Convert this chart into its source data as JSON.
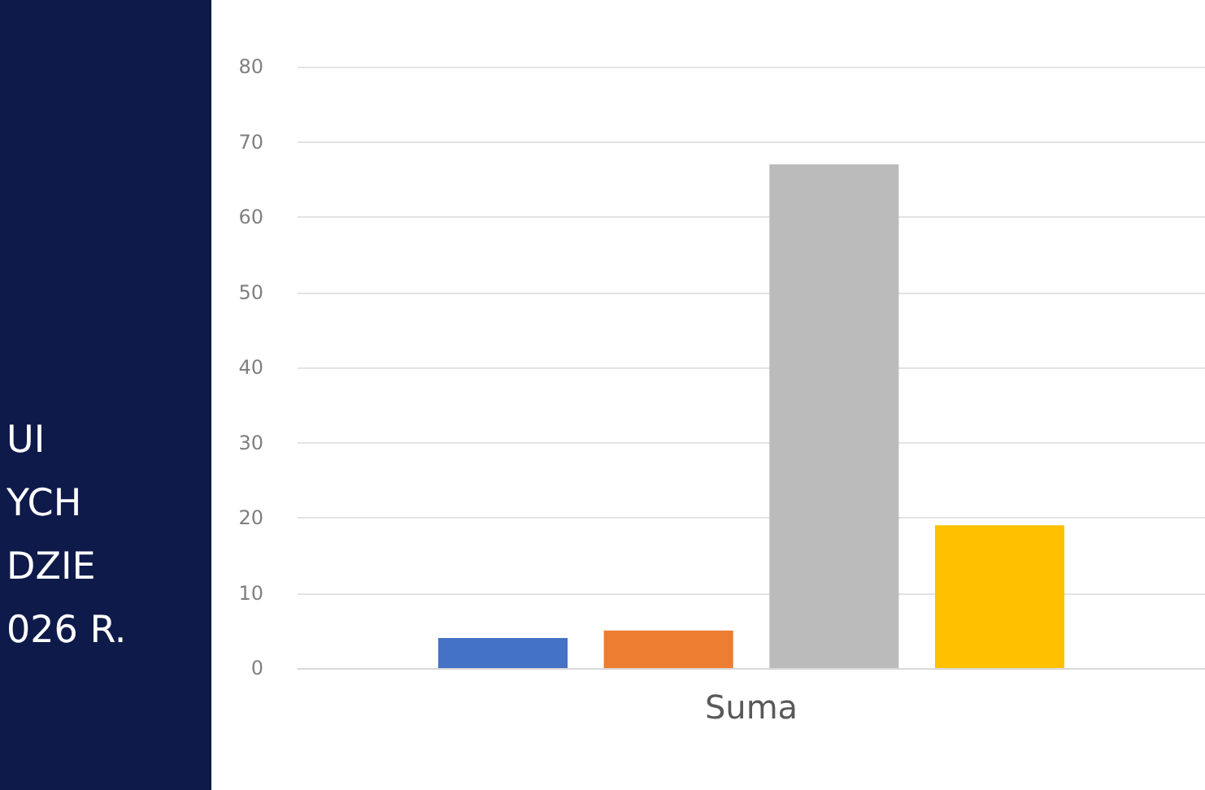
{
  "chart_data": {
    "type": "bar",
    "categories": [
      "Suma"
    ],
    "series": [
      {
        "color": "#4472c4",
        "values": [
          4
        ]
      },
      {
        "color": "#ed7d31",
        "values": [
          5
        ]
      },
      {
        "color": "#bbbbbb",
        "values": [
          67
        ]
      },
      {
        "color": "#ffc000",
        "values": [
          19
        ]
      }
    ],
    "ylim": [
      0,
      80
    ],
    "yticks": [
      0,
      10,
      20,
      30,
      40,
      50,
      60,
      70,
      80
    ],
    "grid": "y",
    "annotations": [
      "UI",
      "YCH",
      "DZIE",
      "026 R."
    ]
  }
}
